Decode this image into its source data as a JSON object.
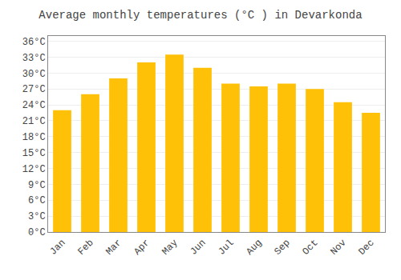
{
  "chart_data": {
    "type": "bar",
    "title": "Average monthly temperatures (°C ) in Devarkonda",
    "categories": [
      "Jan",
      "Feb",
      "Mar",
      "Apr",
      "May",
      "Jun",
      "Jul",
      "Aug",
      "Sep",
      "Oct",
      "Nov",
      "Dec"
    ],
    "values": [
      23.0,
      26.0,
      29.0,
      32.0,
      33.5,
      31.0,
      28.0,
      27.5,
      28.0,
      27.0,
      24.5,
      22.5
    ],
    "color": "#FFC107",
    "ylim": [
      0,
      37
    ],
    "yticks": [
      {
        "value": 0,
        "label": "0°C"
      },
      {
        "value": 3,
        "label": "3°C"
      },
      {
        "value": 6,
        "label": "6°C"
      },
      {
        "value": 9,
        "label": "9°C"
      },
      {
        "value": 12,
        "label": "12°C"
      },
      {
        "value": 15,
        "label": "15°C"
      },
      {
        "value": 18,
        "label": "18°C"
      },
      {
        "value": 21,
        "label": "21°C"
      },
      {
        "value": 24,
        "label": "24°C"
      },
      {
        "value": 27,
        "label": "27°C"
      },
      {
        "value": 30,
        "label": "30°C"
      },
      {
        "value": 33,
        "label": "33°C"
      },
      {
        "value": 36,
        "label": "36°C"
      }
    ],
    "grid": true
  }
}
